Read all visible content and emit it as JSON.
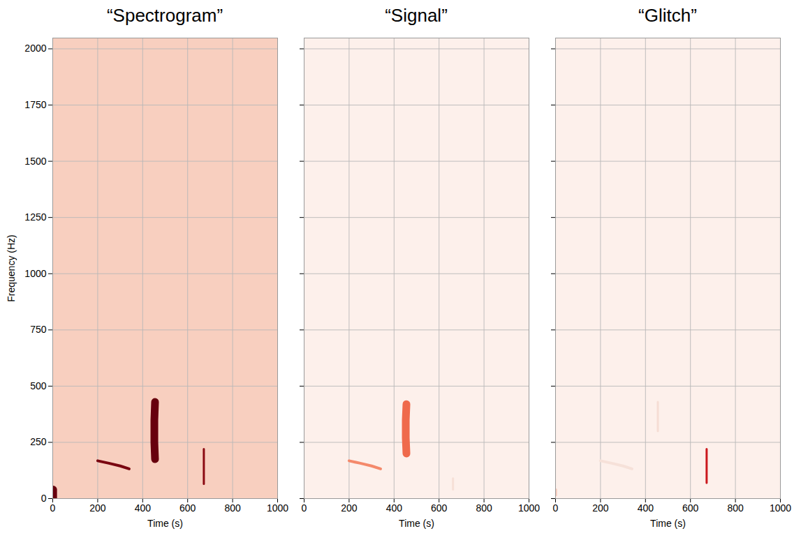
{
  "chart_data": [
    {
      "type": "spectrogram",
      "title": "“Spectrogram”",
      "x_label": "Time (s)",
      "y_label": "Frequency (Hz)",
      "xlim": [
        0,
        1000
      ],
      "ylim": [
        0,
        2048
      ],
      "xticks": [
        0,
        200,
        400,
        600,
        800,
        1000
      ],
      "yticks": [
        0,
        250,
        500,
        750,
        1000,
        1250,
        1500,
        1750,
        2000
      ],
      "grid": true,
      "color": "#f8cfbf",
      "tracks": [
        {
          "time": [
            2,
            2
          ],
          "frequency": [
            0,
            40
          ],
          "color": "#67000d",
          "line_style": "thick"
        },
        {
          "time": [
            200,
            250,
            300,
            340
          ],
          "frequency": [
            168,
            157,
            145,
            132
          ],
          "color": "#7a0510",
          "line_style": "medium"
        },
        {
          "time": [
            455,
            452,
            452,
            455
          ],
          "frequency": [
            175,
            250,
            350,
            430
          ],
          "color": "#67000d",
          "line_style": "thick"
        },
        {
          "time": [
            672,
            672
          ],
          "frequency": [
            65,
            220
          ],
          "color": "#8b0a12",
          "line_style": "thin"
        }
      ]
    },
    {
      "type": "spectrogram",
      "title": "“Signal”",
      "x_label": "Time (s)",
      "xlim": [
        0,
        1000
      ],
      "ylim": [
        0,
        2048
      ],
      "xticks": [
        0,
        200,
        400,
        600,
        800,
        1000
      ],
      "yticks": [
        0,
        250,
        500,
        750,
        1000,
        1250,
        1500,
        1750,
        2000
      ],
      "grid": true,
      "tick_labels": "x",
      "color": "#fdf0eb",
      "tracks": [
        {
          "time": [
            200,
            250,
            300,
            340
          ],
          "frequency": [
            168,
            157,
            145,
            132
          ],
          "color": "#f4896b",
          "line_style": "medium"
        },
        {
          "time": [
            455,
            452,
            452,
            455
          ],
          "frequency": [
            200,
            270,
            350,
            420
          ],
          "color": "#ef6a4c",
          "line_style": "thick"
        },
        {
          "time": [
            662,
            662
          ],
          "frequency": [
            40,
            90
          ],
          "color": "#f7e0d7",
          "line_style": "thin"
        }
      ]
    },
    {
      "type": "spectrogram",
      "title": "“Glitch”",
      "x_label": "Time (s)",
      "xlim": [
        0,
        1000
      ],
      "ylim": [
        0,
        2048
      ],
      "xticks": [
        0,
        200,
        400,
        600,
        800,
        1000
      ],
      "yticks": [
        0,
        250,
        500,
        750,
        1000,
        1250,
        1500,
        1750,
        2000
      ],
      "grid": true,
      "tick_labels": "x",
      "color": "#fdf0eb",
      "tracks": [
        {
          "time": [
            2,
            2
          ],
          "frequency": [
            15,
            40
          ],
          "color": "#f4c7b8",
          "line_style": "thin"
        },
        {
          "time": [
            200,
            250,
            300,
            340
          ],
          "frequency": [
            168,
            157,
            145,
            132
          ],
          "color": "#f6e1d9",
          "line_style": "medium"
        },
        {
          "time": [
            455,
            455
          ],
          "frequency": [
            300,
            430
          ],
          "color": "#f6ddd4",
          "line_style": "thin"
        },
        {
          "time": [
            672,
            672
          ],
          "frequency": [
            70,
            220
          ],
          "color": "#cb181d",
          "line_style": "thin"
        }
      ]
    }
  ]
}
